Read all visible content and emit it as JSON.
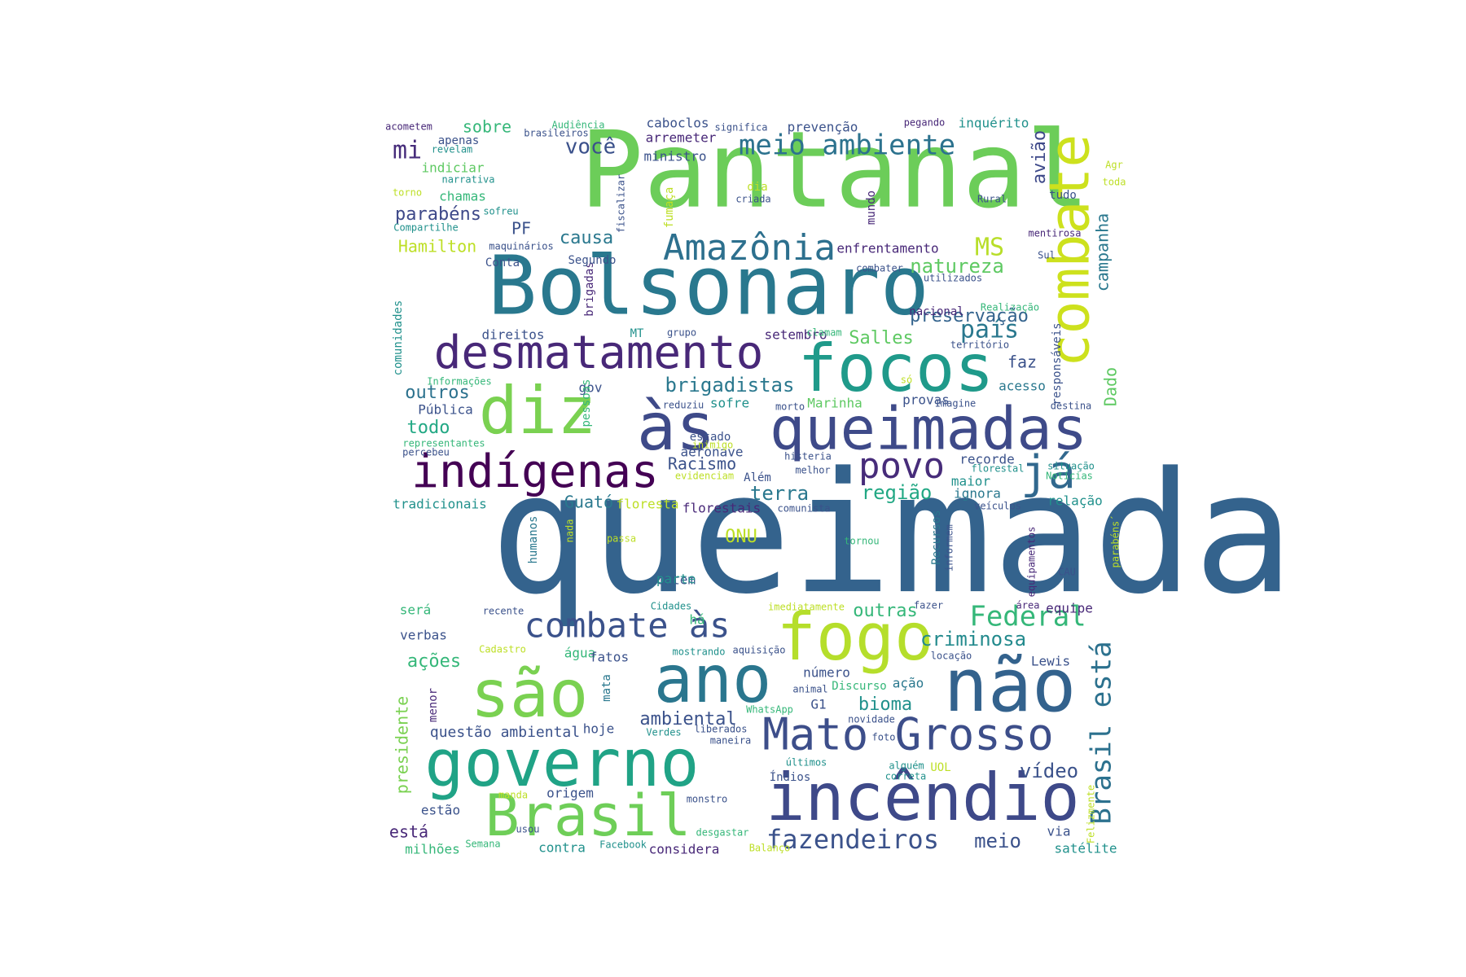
{
  "word_cloud": {
    "background": "#ffffff",
    "palette": "viridis",
    "words": [
      {
        "text": "queimada",
        "color": "#34638d"
      },
      {
        "text": "Pantanal",
        "color": "#6ccd59"
      },
      {
        "text": "Bolsonaro",
        "color": "#29788e"
      },
      {
        "text": "combate",
        "color": "#cde11d"
      },
      {
        "text": "focos",
        "color": "#1f9a8a"
      },
      {
        "text": "diz",
        "color": "#7ad151"
      },
      {
        "text": "às",
        "color": "#3e4a89"
      },
      {
        "text": "queimadas",
        "color": "#3e4a89"
      },
      {
        "text": "desmatamento",
        "color": "#482878"
      },
      {
        "text": "indígenas",
        "color": "#440154"
      },
      {
        "text": "povo",
        "color": "#472c7a"
      },
      {
        "text": "já",
        "color": "#31688e"
      },
      {
        "text": "Amazônia",
        "color": "#2d708e"
      },
      {
        "text": "meio ambiente",
        "color": "#2c728e"
      },
      {
        "text": "você",
        "color": "#3b518b"
      },
      {
        "text": "mi",
        "color": "#472d7b"
      },
      {
        "text": "fogo",
        "color": "#b5de2b"
      },
      {
        "text": "combate às",
        "color": "#3b528b"
      },
      {
        "text": "ano",
        "color": "#2a768e"
      },
      {
        "text": "são",
        "color": "#7ad151"
      },
      {
        "text": "não",
        "color": "#33628d"
      },
      {
        "text": "governo",
        "color": "#20a386"
      },
      {
        "text": "Brasil",
        "color": "#6ece58"
      },
      {
        "text": "incêndio",
        "color": "#3e4989"
      },
      {
        "text": "Mato Grosso",
        "color": "#3d4e8a"
      },
      {
        "text": "Brasil está",
        "color": "#2c718e"
      },
      {
        "text": "Federal",
        "color": "#35b779"
      },
      {
        "text": "criminosa",
        "color": "#238a8d"
      },
      {
        "text": "fazendeiros",
        "color": "#3b528b"
      },
      {
        "text": "meio",
        "color": "#3b528b"
      },
      {
        "text": "brigadistas",
        "color": "#2a788e"
      },
      {
        "text": "região",
        "color": "#22a884"
      },
      {
        "text": "terra",
        "color": "#2a788e"
      },
      {
        "text": "Racismo",
        "color": "#3b528b"
      },
      {
        "text": "Guató",
        "color": "#2a788e"
      },
      {
        "text": "ONU",
        "color": "#bddf26"
      },
      {
        "text": "Salles",
        "color": "#5ec962"
      },
      {
        "text": "país",
        "color": "#2a788e"
      },
      {
        "text": "preservação",
        "color": "#33638d"
      },
      {
        "text": "natureza",
        "color": "#5ec962"
      },
      {
        "text": "MS",
        "color": "#b8de29"
      },
      {
        "text": "campanha",
        "color": "#2a788e"
      },
      {
        "text": "avião",
        "color": "#3e4989"
      },
      {
        "text": "Dado",
        "color": "#5ec962"
      },
      {
        "text": "bioma",
        "color": "#21918c"
      },
      {
        "text": "ambiental",
        "color": "#3b528b"
      },
      {
        "text": "vídeo",
        "color": "#3b528b"
      },
      {
        "text": "outras",
        "color": "#35b779"
      },
      {
        "text": "questão ambiental",
        "color": "#3b528b"
      },
      {
        "text": "presidente",
        "color": "#7ad151"
      },
      {
        "text": "ações",
        "color": "#35b779"
      },
      {
        "text": "sobre",
        "color": "#35b779"
      },
      {
        "text": "parabéns",
        "color": "#3e4989"
      },
      {
        "text": "Hamilton",
        "color": "#bddf26"
      },
      {
        "text": "PF",
        "color": "#3b528b"
      },
      {
        "text": "causa",
        "color": "#2a788e"
      },
      {
        "text": "outros",
        "color": "#2c728e"
      },
      {
        "text": "todo",
        "color": "#22a884"
      },
      {
        "text": "faz",
        "color": "#3b528b"
      },
      {
        "text": "está",
        "color": "#482878"
      },
      {
        "text": "estão",
        "color": "#3b528b"
      },
      {
        "text": "milhões",
        "color": "#35b779"
      },
      {
        "text": "contra",
        "color": "#21918c"
      },
      {
        "text": "considera",
        "color": "#482878"
      },
      {
        "text": "satélite",
        "color": "#21918c"
      },
      {
        "text": "via",
        "color": "#3b528b"
      },
      {
        "text": "caboclos",
        "color": "#3b528b"
      },
      {
        "text": "arremeter",
        "color": "#482878"
      },
      {
        "text": "prevenção",
        "color": "#3b528b"
      },
      {
        "text": "inquérito",
        "color": "#21918c"
      },
      {
        "text": "ministro",
        "color": "#3b528b"
      },
      {
        "text": "apenas",
        "color": "#3b528b"
      },
      {
        "text": "indiciar",
        "color": "#5ec962"
      },
      {
        "text": "chamas",
        "color": "#35b779"
      },
      {
        "text": "enfrentamento",
        "color": "#482878"
      },
      {
        "text": "nacional",
        "color": "#482878"
      },
      {
        "text": "direitos",
        "color": "#3b528b"
      },
      {
        "text": "setembro",
        "color": "#482878"
      },
      {
        "text": "acesso",
        "color": "#2a788e"
      },
      {
        "text": "Pública",
        "color": "#3b528b"
      },
      {
        "text": "gov",
        "color": "#3b528b"
      },
      {
        "text": "sofre",
        "color": "#21918c"
      },
      {
        "text": "Marinha",
        "color": "#5ec962"
      },
      {
        "text": "provas",
        "color": "#3b528b"
      },
      {
        "text": "estado",
        "color": "#3b528b"
      },
      {
        "text": "aeronave",
        "color": "#3b528b"
      },
      {
        "text": "recorde",
        "color": "#3b528b"
      },
      {
        "text": "maior",
        "color": "#21918c"
      },
      {
        "text": "ignora",
        "color": "#2a788e"
      },
      {
        "text": "relação",
        "color": "#21918c"
      },
      {
        "text": "floresta",
        "color": "#bddf26"
      },
      {
        "text": "florestais",
        "color": "#482878"
      },
      {
        "text": "tradicionais",
        "color": "#21918c"
      },
      {
        "text": "ontem",
        "color": "#3b528b"
      },
      {
        "text": "parte",
        "color": "#21918c"
      },
      {
        "text": "equipe",
        "color": "#482878"
      },
      {
        "text": "verbas",
        "color": "#3b528b"
      },
      {
        "text": "será",
        "color": "#35b779"
      },
      {
        "text": "há",
        "color": "#35b779"
      },
      {
        "text": "água",
        "color": "#35b779"
      },
      {
        "text": "fatos",
        "color": "#3b528b"
      },
      {
        "text": "Lewis",
        "color": "#3b528b"
      },
      {
        "text": "número",
        "color": "#3b528b"
      },
      {
        "text": "ação",
        "color": "#2a788e"
      },
      {
        "text": "G1",
        "color": "#3b528b"
      },
      {
        "text": "hoje",
        "color": "#3b528b"
      },
      {
        "text": "origem",
        "color": "#3b528b"
      },
      {
        "text": "Índios",
        "color": "#3b528b"
      },
      {
        "text": "menor",
        "color": "#482878"
      },
      {
        "text": "mata",
        "color": "#2a788e"
      },
      {
        "text": "humanos",
        "color": "#2a788e"
      },
      {
        "text": "Recursos",
        "color": "#2a788e"
      },
      {
        "text": "pessoas",
        "color": "#35b779"
      },
      {
        "text": "brigadas",
        "color": "#482878"
      },
      {
        "text": "comunidades",
        "color": "#21918c"
      },
      {
        "text": "responsáveis",
        "color": "#3b528b"
      },
      {
        "text": "mundo",
        "color": "#482878"
      },
      {
        "text": "fumaça",
        "color": "#bddf26"
      },
      {
        "text": "fiscalizar",
        "color": "#3b528b"
      },
      {
        "text": "dia",
        "color": "#bddf26"
      },
      {
        "text": "criada",
        "color": "#3b528b"
      },
      {
        "text": "tudo",
        "color": "#3b528b"
      },
      {
        "text": "Segundo",
        "color": "#3b528b"
      },
      {
        "text": "Conta",
        "color": "#3b528b"
      },
      {
        "text": "MT",
        "color": "#21918c"
      },
      {
        "text": "grupo",
        "color": "#3b528b"
      },
      {
        "text": "clamam",
        "color": "#35b779"
      },
      {
        "text": "território",
        "color": "#3b528b"
      },
      {
        "text": "Realização",
        "color": "#35b779"
      },
      {
        "text": "utilizados",
        "color": "#3b528b"
      },
      {
        "text": "combater",
        "color": "#3b528b"
      },
      {
        "text": "mentirosa",
        "color": "#482878"
      },
      {
        "text": "Sul",
        "color": "#3b528b"
      },
      {
        "text": "Rural",
        "color": "#3b528b"
      },
      {
        "text": "toda",
        "color": "#bddf26"
      },
      {
        "text": "Agr",
        "color": "#bddf26"
      },
      {
        "text": "pegando",
        "color": "#482878"
      },
      {
        "text": "significa",
        "color": "#3b528b"
      },
      {
        "text": "Audiência",
        "color": "#35b779"
      },
      {
        "text": "brasileiros",
        "color": "#3b528b"
      },
      {
        "text": "acometem",
        "color": "#482878"
      },
      {
        "text": "revelam",
        "color": "#21918c"
      },
      {
        "text": "narrativa",
        "color": "#21918c"
      },
      {
        "text": "torno",
        "color": "#bddf26"
      },
      {
        "text": "sofreu",
        "color": "#21918c"
      },
      {
        "text": "Compartilhe",
        "color": "#21918c"
      },
      {
        "text": "maquinários",
        "color": "#3b528b"
      },
      {
        "text": "Informações",
        "color": "#35b779"
      },
      {
        "text": "representantes",
        "color": "#35b779"
      },
      {
        "text": "percebeu",
        "color": "#3b528b"
      },
      {
        "text": "reduziu",
        "color": "#3b528b"
      },
      {
        "text": "morto",
        "color": "#3b528b"
      },
      {
        "text": "só",
        "color": "#bddf26"
      },
      {
        "text": "Imagine",
        "color": "#3b528b"
      },
      {
        "text": "destina",
        "color": "#3b528b"
      },
      {
        "text": "inimigo",
        "color": "#bddf26"
      },
      {
        "text": "histeria",
        "color": "#3b528b"
      },
      {
        "text": "melhor",
        "color": "#3b528b"
      },
      {
        "text": "evidenciam",
        "color": "#bddf26"
      },
      {
        "text": "Além",
        "color": "#3b528b"
      },
      {
        "text": "comunista",
        "color": "#3b528b"
      },
      {
        "text": "florestal",
        "color": "#21918c"
      },
      {
        "text": "veículos",
        "color": "#3b528b"
      },
      {
        "text": "situação",
        "color": "#21918c"
      },
      {
        "text": "Notícias",
        "color": "#35b779"
      },
      {
        "text": "nada",
        "color": "#bddf26"
      },
      {
        "text": "passa",
        "color": "#bddf26"
      },
      {
        "text": "tornou",
        "color": "#35b779"
      },
      {
        "text": "informem",
        "color": "#3b528b"
      },
      {
        "text": "equipamentos",
        "color": "#482878"
      },
      {
        "text": "CAU",
        "color": "#3b528b"
      },
      {
        "text": "parabéns´",
        "color": "#bddf26"
      },
      {
        "text": "recente",
        "color": "#3b528b"
      },
      {
        "text": "Cidades",
        "color": "#21918c"
      },
      {
        "text": "imediatamente",
        "color": "#bddf26"
      },
      {
        "text": "fazer",
        "color": "#3b528b"
      },
      {
        "text": "área",
        "color": "#482878"
      },
      {
        "text": "Cadastro",
        "color": "#bddf26"
      },
      {
        "text": "mostrando",
        "color": "#21918c"
      },
      {
        "text": "aquisição",
        "color": "#3b528b"
      },
      {
        "text": "locação",
        "color": "#3b528b"
      },
      {
        "text": "animal",
        "color": "#3b528b"
      },
      {
        "text": "Discurso",
        "color": "#35b779"
      },
      {
        "text": "WhatsApp",
        "color": "#35b779"
      },
      {
        "text": "novidade",
        "color": "#3b528b"
      },
      {
        "text": "liberados",
        "color": "#3b528b"
      },
      {
        "text": "Verdes",
        "color": "#21918c"
      },
      {
        "text": "maneira",
        "color": "#3b528b"
      },
      {
        "text": "foto",
        "color": "#3b528b"
      },
      {
        "text": "últimos",
        "color": "#21918c"
      },
      {
        "text": "alguém",
        "color": "#21918c"
      },
      {
        "text": "correta",
        "color": "#21918c"
      },
      {
        "text": "UOL",
        "color": "#bddf26"
      },
      {
        "text": "Felizmente",
        "color": "#bddf26"
      },
      {
        "text": "manda",
        "color": "#bddf26"
      },
      {
        "text": "monstro",
        "color": "#3b528b"
      },
      {
        "text": "usou",
        "color": "#3b528b"
      },
      {
        "text": "desgastar",
        "color": "#35b779"
      },
      {
        "text": "Semana",
        "color": "#35b779"
      },
      {
        "text": "Facebook",
        "color": "#21918c"
      },
      {
        "text": "Balanço",
        "color": "#bddf26"
      }
    ]
  }
}
